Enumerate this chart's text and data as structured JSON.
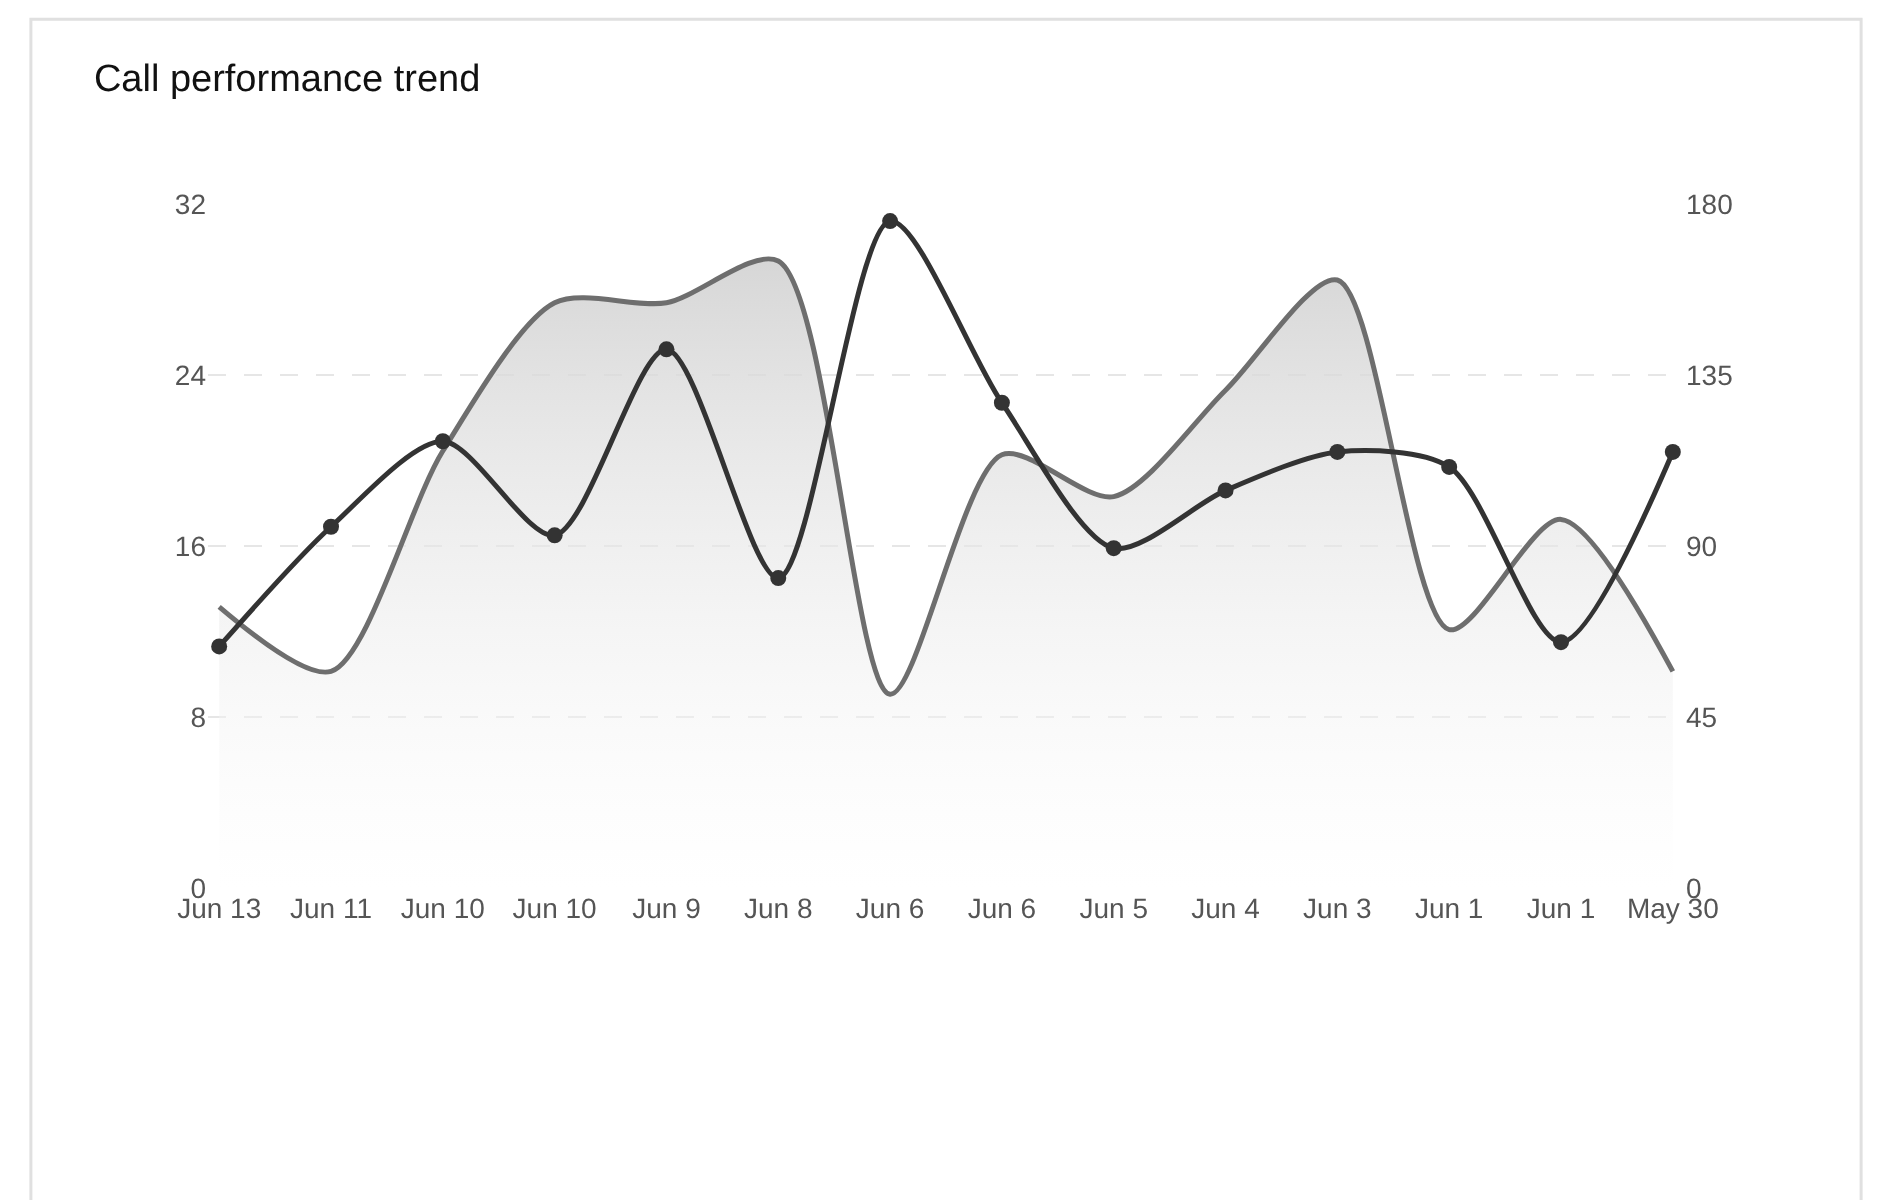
{
  "chart_data": {
    "type": "line",
    "title": "Call performance trend",
    "categories": [
      "Jun 13",
      "Jun 11",
      "Jun 10",
      "Jun 10",
      "Jun 9",
      "Jun 8",
      "Jun 6",
      "Jun 6",
      "Jun 5",
      "Jun 4",
      "Jun 3",
      "Jun 1",
      "Jun 1",
      "May 30"
    ],
    "series": [
      {
        "type": "area",
        "axis": "y2",
        "color": "#6e6e6e",
        "values": [
          74,
          57,
          115,
          154,
          154,
          165,
          51,
          114,
          103,
          131,
          160,
          68,
          97,
          57
        ]
      },
      {
        "color": "#333333",
        "marker": "circle",
        "values": [
          11.3,
          16.9,
          20.9,
          16.5,
          25.2,
          14.5,
          31.2,
          22.7,
          15.9,
          18.6,
          20.4,
          19.7,
          11.5,
          20.4
        ]
      }
    ],
    "ylim": [
      0,
      32
    ],
    "yticks": [
      0,
      8,
      16,
      24,
      32
    ],
    "y2lim": [
      0,
      180
    ],
    "y2ticks": [
      0,
      45,
      90,
      135,
      180
    ],
    "grid": "y"
  }
}
